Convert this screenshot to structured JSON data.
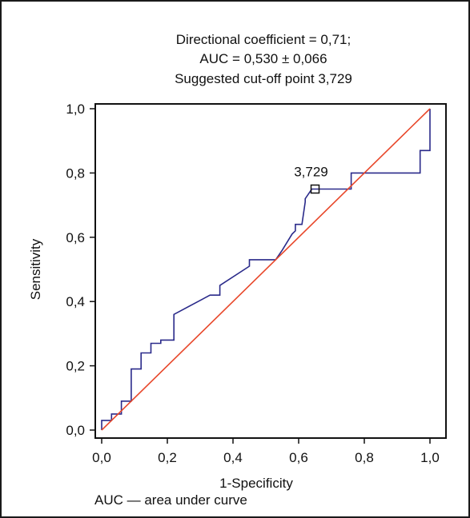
{
  "chart_data": {
    "type": "line",
    "title_lines": [
      "Directional coefficient = 0,71;",
      "AUC = 0,530 ± 0,066",
      "Suggested cut-off point 3,729"
    ],
    "xlabel": "1-Specificity",
    "ylabel": "Sensitivity",
    "xlim": [
      0,
      1.0
    ],
    "ylim": [
      0,
      1.0
    ],
    "xticks": [
      "0,0",
      "0,2",
      "0,4",
      "0,6",
      "0,8",
      "1,0"
    ],
    "yticks": [
      "0,0",
      "0,2",
      "0,4",
      "0,6",
      "0,8",
      "1,0"
    ],
    "grid": false,
    "series": [
      {
        "color": "#2a2a8a",
        "x": [
          0.0,
          0.0,
          0.03,
          0.03,
          0.06,
          0.06,
          0.09,
          0.09,
          0.12,
          0.12,
          0.15,
          0.15,
          0.18,
          0.18,
          0.22,
          0.22,
          0.33,
          0.36,
          0.36,
          0.45,
          0.45,
          0.53,
          0.55,
          0.58,
          0.59,
          0.59,
          0.61,
          0.62,
          0.62,
          0.64,
          0.65,
          0.67,
          0.76,
          0.76,
          0.97,
          0.97,
          1.0,
          1.0
        ],
        "y": [
          0.0,
          0.03,
          0.03,
          0.05,
          0.05,
          0.09,
          0.09,
          0.19,
          0.19,
          0.24,
          0.24,
          0.27,
          0.27,
          0.28,
          0.28,
          0.36,
          0.42,
          0.42,
          0.45,
          0.51,
          0.53,
          0.53,
          0.56,
          0.61,
          0.62,
          0.64,
          0.64,
          0.71,
          0.72,
          0.75,
          0.75,
          0.75,
          0.75,
          0.8,
          0.8,
          0.87,
          0.87,
          1.0
        ]
      },
      {
        "color": "#e8472a",
        "x": [
          0.0,
          1.0
        ],
        "y": [
          0.0,
          1.0
        ]
      }
    ],
    "annotations": [
      {
        "text": "3,729",
        "x": 0.65,
        "y": 0.75,
        "marker": "square"
      }
    ]
  },
  "footnote": "AUC — area under curve"
}
